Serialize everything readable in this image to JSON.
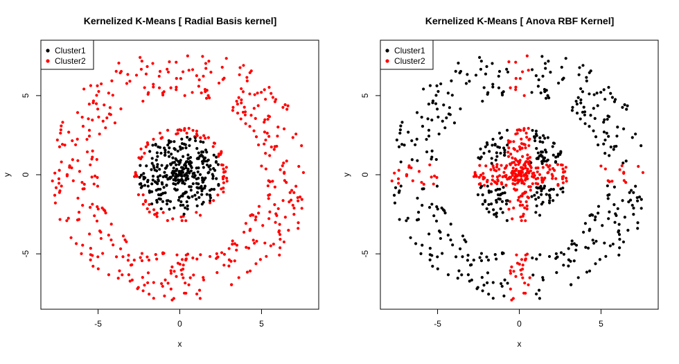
{
  "chart_data": [
    {
      "type": "scatter",
      "title": "Kernelized K-Means [ Radial Basis kernel]",
      "xlabel": "x",
      "ylabel": "y",
      "xlim": [
        -8.5,
        8.5
      ],
      "ylim": [
        -8.5,
        8.5
      ],
      "x_ticks": [
        -5,
        0,
        5
      ],
      "y_ticks": [
        -5,
        0,
        5
      ],
      "grid": false,
      "legend": {
        "position": "top-left",
        "entries": [
          {
            "name": "Cluster1",
            "color": "#000000"
          },
          {
            "name": "Cluster2",
            "color": "#ff0000"
          }
        ]
      },
      "series": [
        {
          "name": "Cluster1",
          "color": "#000000",
          "description_shape": "inner disc",
          "radius_range": [
            0,
            2.55
          ],
          "point_count": 340
        },
        {
          "name": "Cluster2",
          "color": "#ff0000",
          "description_shape": "outer ring plus rim of inner disc",
          "ring_radius_range": [
            5,
            8
          ],
          "rim_radius_range": [
            2.55,
            3.0
          ],
          "point_count": 430
        }
      ]
    },
    {
      "type": "scatter",
      "title": "Kernelized K-Means [ Anova RBF Kernel]",
      "xlabel": "x",
      "ylabel": "y",
      "xlim": [
        -8.5,
        8.5
      ],
      "ylim": [
        -8.5,
        8.5
      ],
      "x_ticks": [
        -5,
        0,
        5
      ],
      "y_ticks": [
        -5,
        0,
        5
      ],
      "grid": false,
      "legend": {
        "position": "top-left",
        "entries": [
          {
            "name": "Cluster1",
            "color": "#000000"
          },
          {
            "name": "Cluster2",
            "color": "#ff0000"
          }
        ]
      },
      "series": [
        {
          "name": "Cluster1",
          "color": "#000000",
          "description_shape": "outer ring except axis-aligned bands, plus inner disc away from axes"
        },
        {
          "name": "Cluster2",
          "color": "#ff0000",
          "description_shape": "points near the x and y axes (|x|<0.7 or |y|<0.7)",
          "axis_band_halfwidth": 0.7
        }
      ]
    }
  ],
  "colors": {
    "cluster1": "#000000",
    "cluster2": "#ff0000",
    "axis": "#000000"
  }
}
